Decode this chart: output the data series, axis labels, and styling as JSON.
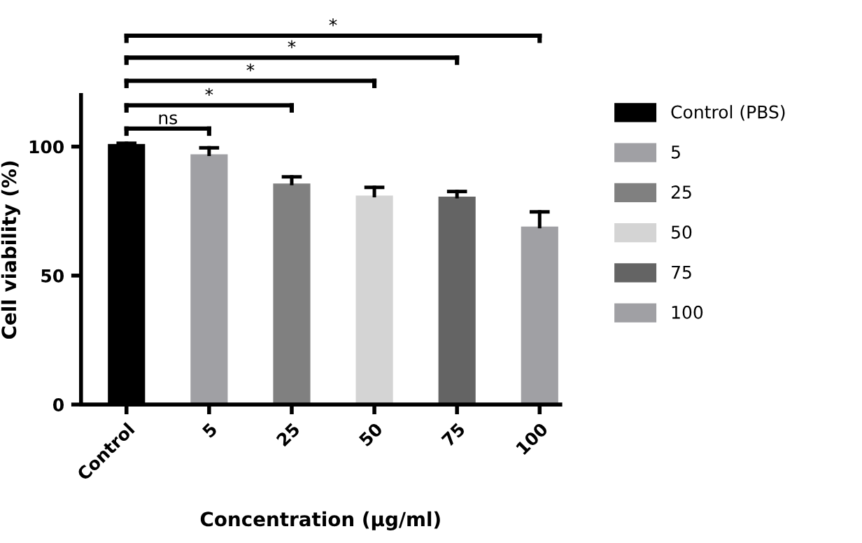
{
  "chart_data": {
    "type": "bar",
    "xlabel": "Concentration (µg/ml)",
    "ylabel": "Cell viability (%)",
    "categories": [
      "Control",
      "5",
      "25",
      "50",
      "75",
      "100"
    ],
    "series": [
      {
        "name": "Control (PBS)",
        "color": "#000000",
        "values": [
          101,
          null,
          null,
          null,
          null,
          null
        ],
        "errors": [
          0.3,
          null,
          null,
          null,
          null,
          null
        ]
      },
      {
        "name": "5",
        "color": "#a0a0a4",
        "values": [
          null,
          97,
          null,
          null,
          null,
          null
        ],
        "errors": [
          null,
          2.5,
          null,
          null,
          null,
          null
        ]
      },
      {
        "name": "25",
        "color": "#808080",
        "values": [
          null,
          null,
          85.7,
          null,
          null,
          null
        ],
        "errors": [
          null,
          null,
          2.6,
          null,
          null,
          null
        ]
      },
      {
        "name": "50",
        "color": "#d4d4d4",
        "values": [
          null,
          null,
          null,
          81,
          null,
          null
        ],
        "errors": [
          null,
          null,
          null,
          3.2,
          null,
          null
        ]
      },
      {
        "name": "75",
        "color": "#646464",
        "values": [
          null,
          null,
          null,
          null,
          80.6,
          null
        ],
        "errors": [
          null,
          null,
          null,
          null,
          2,
          null
        ]
      },
      {
        "name": "100",
        "color": "#a0a0a4",
        "values": [
          null,
          null,
          null,
          null,
          null,
          69
        ],
        "errors": [
          null,
          null,
          null,
          null,
          null,
          5.7
        ]
      }
    ],
    "ylim": [
      0,
      120
    ],
    "yticks": [
      0,
      50,
      100
    ],
    "grid": false,
    "legend": "right",
    "annotations": [
      "ns",
      "*",
      "*",
      "*",
      "*"
    ]
  }
}
